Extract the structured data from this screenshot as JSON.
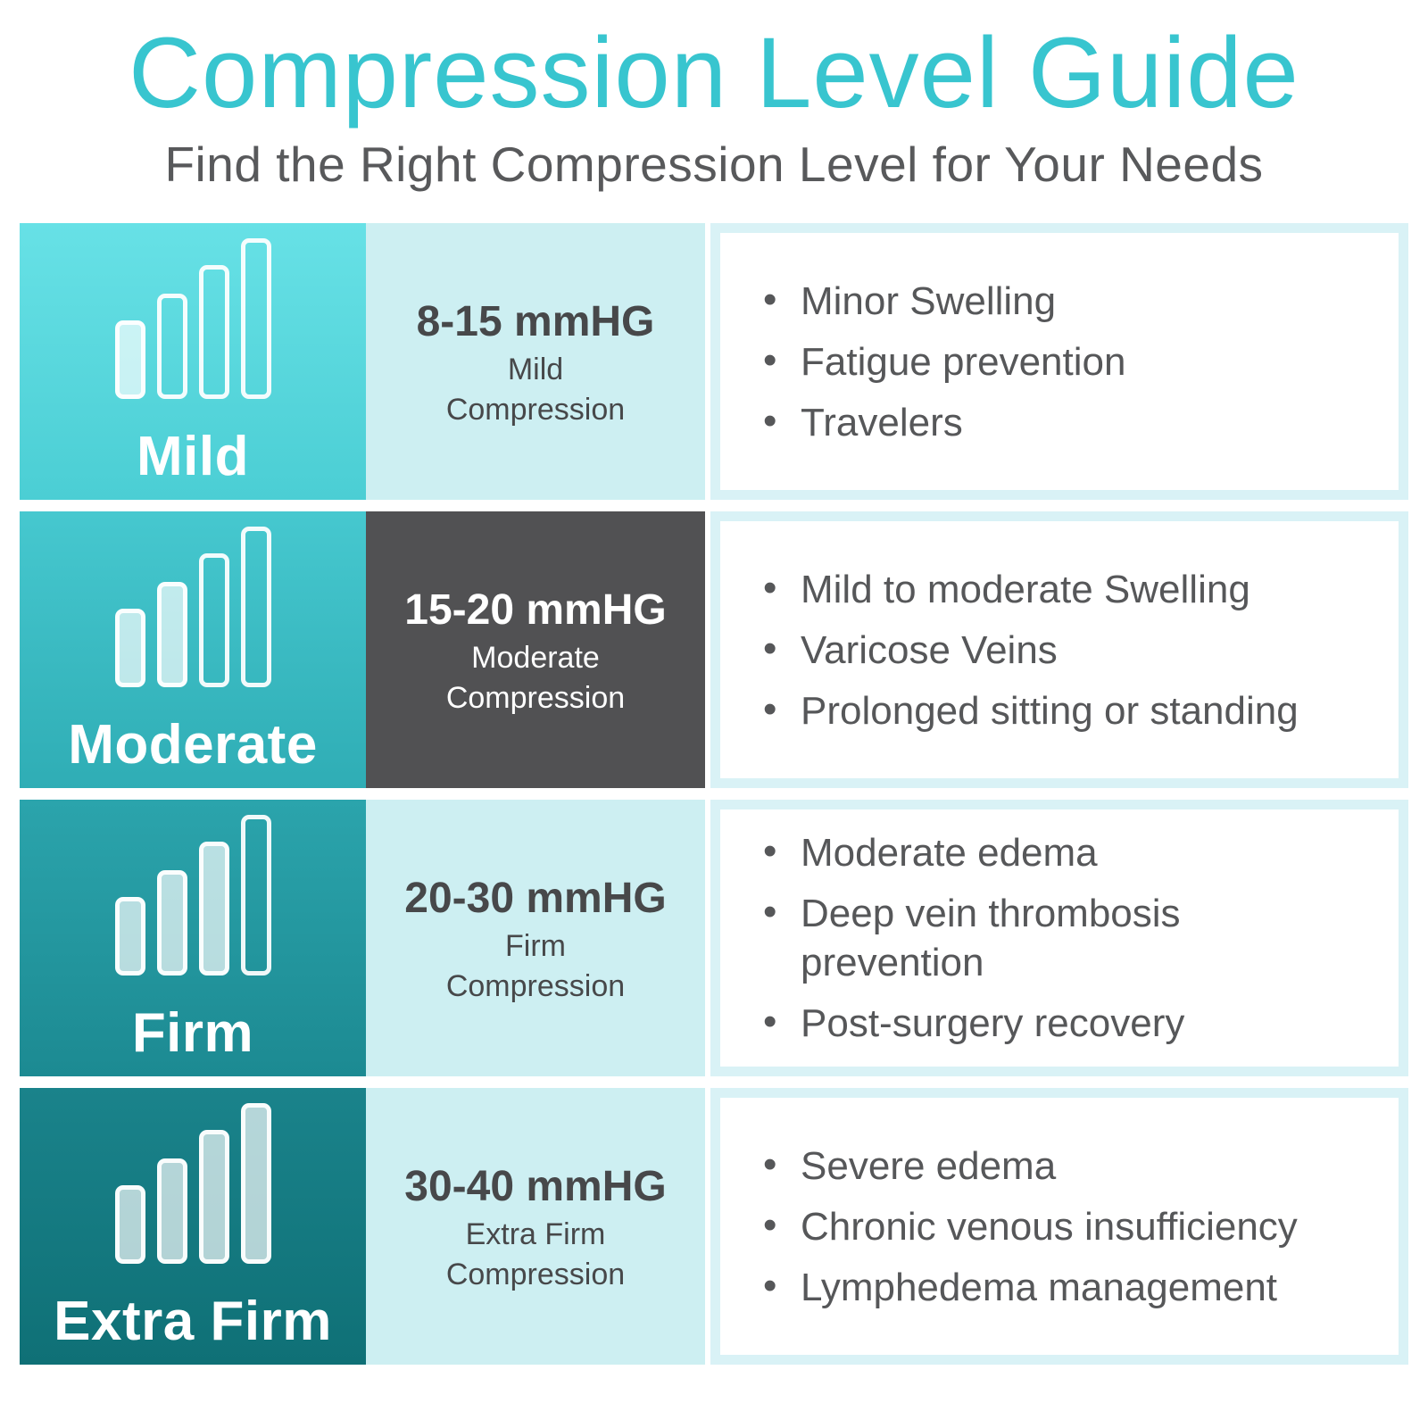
{
  "header": {
    "title": "Compression Level Guide",
    "subtitle": "Find the Right Compression Level for Your Needs"
  },
  "colors": {
    "title_accent": "#38c5cf",
    "subtitle_text": "#58595b",
    "level_cell_gradient_top_row1": "#67e1e6",
    "level_cell_gradient_bottom_row4": "#0f7076",
    "range_cell_light": "#cdeff2",
    "range_cell_dark": "#515153",
    "uses_card_border": "#d9f2f6",
    "uses_text": "#565759",
    "level_text": "#ffffff"
  },
  "rows": [
    {
      "level": "Mild",
      "bars_filled": 1,
      "bars_total": 4,
      "range": "8-15 mmHG",
      "range_label_line1": "Mild",
      "range_label_line2": "Compression",
      "uses": [
        "Minor Swelling",
        "Fatigue prevention",
        "Travelers"
      ]
    },
    {
      "level": "Moderate",
      "bars_filled": 2,
      "bars_total": 4,
      "range": "15-20 mmHG",
      "range_label_line1": "Moderate",
      "range_label_line2": "Compression",
      "uses": [
        "Mild to moderate Swelling",
        "Varicose Veins",
        "Prolonged sitting or standing"
      ]
    },
    {
      "level": "Firm",
      "bars_filled": 3,
      "bars_total": 4,
      "range": "20-30 mmHG",
      "range_label_line1": "Firm",
      "range_label_line2": "Compression",
      "uses": [
        "Moderate edema",
        "Deep vein thrombosis prevention",
        "Post-surgery recovery"
      ]
    },
    {
      "level": "Extra Firm",
      "bars_filled": 4,
      "bars_total": 4,
      "range": "30-40 mmHG",
      "range_label_line1": "Extra Firm",
      "range_label_line2": "Compression",
      "uses": [
        "Severe edema",
        "Chronic venous insufficiency",
        "Lymphedema management"
      ]
    }
  ]
}
